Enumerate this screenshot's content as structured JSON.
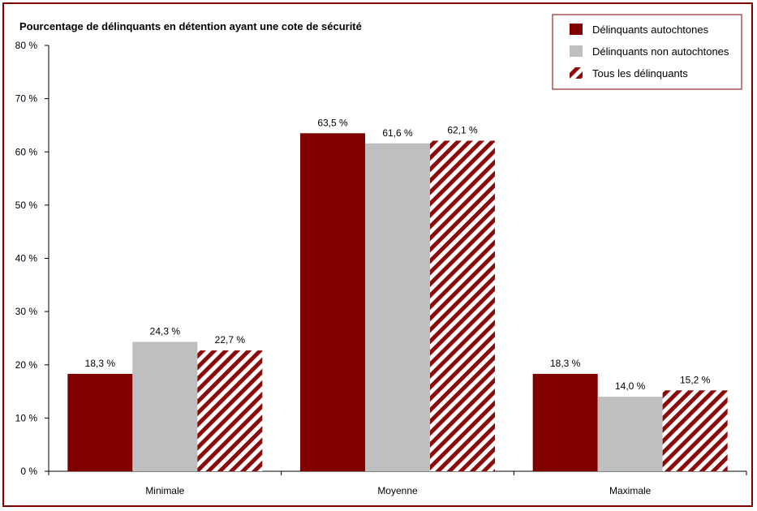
{
  "chart_data": {
    "type": "bar",
    "title": "Pourcentage de délinquants en détention ayant une cote de sécurité",
    "categories": [
      "Minimale",
      "Moyenne",
      "Maximale"
    ],
    "series": [
      {
        "name": "Délinquants autochtones",
        "values": [
          18.3,
          63.5,
          18.3
        ],
        "labels": [
          "18,3 %",
          "63,5 %",
          "18,3 %"
        ],
        "color": "#800000",
        "pattern": "solid"
      },
      {
        "name": "Délinquants non autochtones",
        "values": [
          24.3,
          61.6,
          14.0
        ],
        "labels": [
          "24,3 %",
          "61,6 %",
          "14,0 %"
        ],
        "color": "#bfbfbf",
        "pattern": "solid"
      },
      {
        "name": "Tous les délinquants",
        "values": [
          22.7,
          62.1,
          15.2
        ],
        "labels": [
          "22,7 %",
          "62,1 %",
          "15,2 %"
        ],
        "color": "#8b0a0a",
        "pattern": "diagonal-stripes"
      }
    ],
    "ylim": [
      0,
      80
    ],
    "yticks": [
      0,
      10,
      20,
      30,
      40,
      50,
      60,
      70,
      80
    ],
    "ytick_labels": [
      "0 %",
      "10 %",
      "20 %",
      "30 %",
      "40 %",
      "50 %",
      "60 %",
      "70 %",
      "80 %"
    ],
    "grid": false,
    "legend_position": "top-right",
    "border_color": "#800000"
  }
}
